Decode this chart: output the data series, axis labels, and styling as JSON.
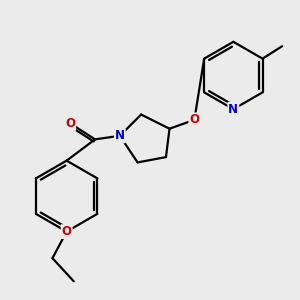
{
  "bg_color": "#ebebeb",
  "bond_color": "#000000",
  "bond_width": 1.6,
  "atom_colors": {
    "N": "#0000cc",
    "O": "#cc0000"
  },
  "font_size": 8.5
}
